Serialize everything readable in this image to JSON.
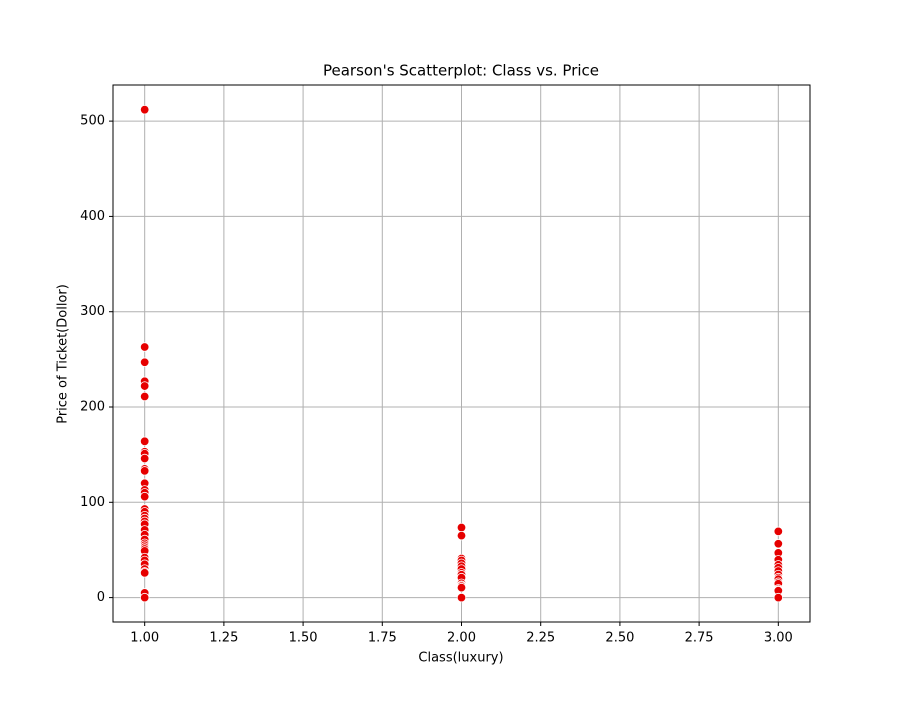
{
  "chart_data": {
    "type": "scatter",
    "title": "Pearson's Scatterplot: Class vs. Price",
    "x_label": "Class(luxury)",
    "y_label": "Price of Ticket(Dollor)",
    "series": [
      {
        "name": "Price",
        "color": "#e60000",
        "x": [
          1,
          1,
          1,
          1,
          1,
          1,
          1,
          1,
          1,
          1,
          1,
          1,
          1,
          1,
          1,
          1,
          1,
          1,
          1,
          1,
          1,
          1,
          1,
          1,
          1,
          1,
          1,
          1,
          1,
          1,
          1,
          1,
          1,
          1,
          1,
          1,
          1,
          1,
          2,
          2,
          2,
          2,
          2,
          2,
          2,
          2,
          2,
          2,
          2,
          2,
          2,
          2,
          2,
          3,
          3,
          3,
          3,
          3,
          3,
          3,
          3,
          3,
          3,
          3,
          3,
          3,
          3,
          3,
          3,
          3
        ],
        "values": [
          512,
          263,
          247,
          227,
          222,
          211,
          164,
          153,
          151,
          146,
          135,
          133,
          120,
          113,
          110,
          106,
          93,
          90,
          86,
          83,
          80,
          77,
          71,
          66,
          61,
          57,
          55,
          53,
          51,
          49,
          42,
          39,
          35,
          30,
          27,
          26,
          5,
          0,
          73.5,
          65,
          41,
          39,
          36,
          33,
          30,
          26,
          24,
          21,
          15,
          13,
          12,
          10.5,
          0,
          69.5,
          56.5,
          46.9,
          39.7,
          34.4,
          31.3,
          27.9,
          24.2,
          21,
          19.3,
          16.1,
          14.5,
          9.2,
          8,
          7.9,
          7.2,
          0
        ]
      }
    ],
    "xlim": [
      0.9,
      3.1
    ],
    "xticks": [
      {
        "value": 1,
        "label": "1.00"
      },
      {
        "value": 1.25,
        "label": "1.25"
      },
      {
        "value": 1.5,
        "label": "1.50"
      },
      {
        "value": 1.75,
        "label": "1.75"
      },
      {
        "value": 2,
        "label": "2.00"
      },
      {
        "value": 2.25,
        "label": "2.25"
      },
      {
        "value": 2.5,
        "label": "2.50"
      },
      {
        "value": 2.75,
        "label": "2.75"
      },
      {
        "value": 3,
        "label": "3.00"
      }
    ],
    "ylim": [
      -25.6,
      537.9
    ],
    "yticks": [
      0,
      100,
      200,
      300,
      400,
      500
    ],
    "grid": true
  }
}
